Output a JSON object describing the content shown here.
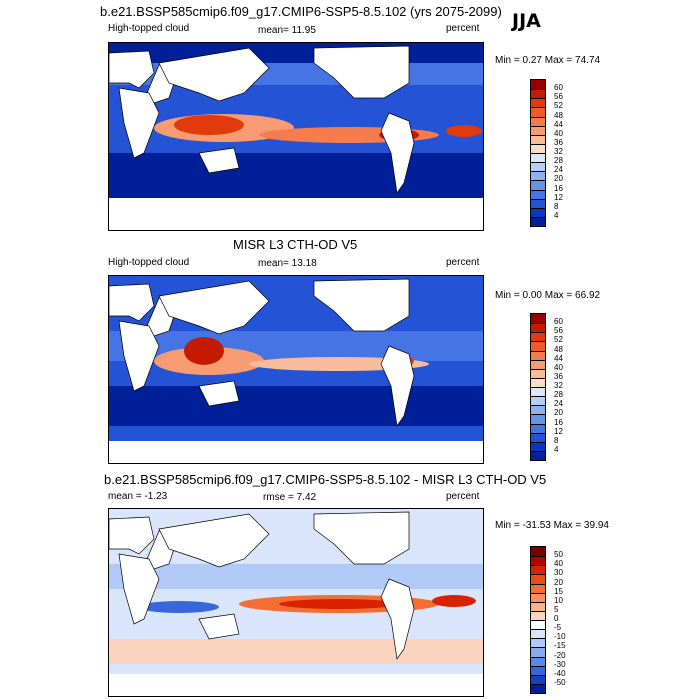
{
  "season": "JJA",
  "panels": [
    {
      "title": "b.e21.BSSP585cmip6.f09_g17.CMIP6-SSP5-8.5.102 (yrs 2075-2099)",
      "left_label": "High-topped cloud",
      "center_label": "mean=  11.95",
      "right_label": "percent",
      "minmax": "Min =   0.27 Max =  74.74",
      "colorbar_labels": [
        "60",
        "56",
        "52",
        "48",
        "44",
        "40",
        "36",
        "32",
        "28",
        "24",
        "20",
        "16",
        "12",
        "8",
        "4"
      ]
    },
    {
      "title": "MISR L3 CTH-OD V5",
      "left_label": "High-topped cloud",
      "center_label": "mean=  13.18",
      "right_label": "percent",
      "minmax": "Min =   0.00 Max =  66.92",
      "colorbar_labels": [
        "60",
        "56",
        "52",
        "48",
        "44",
        "40",
        "36",
        "32",
        "28",
        "24",
        "20",
        "16",
        "12",
        "8",
        "4"
      ]
    },
    {
      "title": "b.e21.BSSP585cmip6.f09_g17.CMIP6-SSP5-8.5.102 - MISR L3 CTH-OD V5",
      "left_label": "mean =  -1.23",
      "center_label": "rmse =   7.42",
      "right_label": "percent",
      "minmax": "Min = -31.53 Max =  39.94",
      "colorbar_labels": [
        "50",
        "40",
        "30",
        "20",
        "15",
        "10",
        "5",
        "0",
        "-5",
        "-10",
        "-15",
        "-20",
        "-30",
        "-40",
        "-50"
      ]
    }
  ],
  "colors": {
    "seq": [
      "#990000",
      "#c41a00",
      "#e03a0d",
      "#ef5a2a",
      "#f47c4d",
      "#f79b72",
      "#f9bc9a",
      "#fbdcc6",
      "#dbe7fb",
      "#b6cff8",
      "#8fb3f2",
      "#6794eb",
      "#4674e4",
      "#2553d6",
      "#0a36c0",
      "#00209a"
    ],
    "div": [
      "#7a0000",
      "#b30000",
      "#d92300",
      "#ee4a12",
      "#f46d32",
      "#f79159",
      "#f9b38b",
      "#fbd4bf",
      "#ffffff",
      "#d9e5fb",
      "#b1c9f6",
      "#88aaef",
      "#5f89e6",
      "#3866db",
      "#1540c4",
      "#00209a"
    ]
  },
  "chart_data": [
    {
      "type": "heatmap",
      "title": "b.e21.BSSP585cmip6.f09_g17.CMIP6-SSP5-8.5.102 (yrs 2075-2099)",
      "variable": "High-topped cloud",
      "units": "percent",
      "mean": 11.95,
      "min": 0.27,
      "max": 74.74,
      "colorbar_levels": [
        4,
        8,
        12,
        16,
        20,
        24,
        28,
        32,
        36,
        40,
        44,
        48,
        52,
        56,
        60
      ]
    },
    {
      "type": "heatmap",
      "title": "MISR L3 CTH-OD V5",
      "variable": "High-topped cloud",
      "units": "percent",
      "mean": 13.18,
      "min": 0.0,
      "max": 66.92,
      "colorbar_levels": [
        4,
        8,
        12,
        16,
        20,
        24,
        28,
        32,
        36,
        40,
        44,
        48,
        52,
        56,
        60
      ]
    },
    {
      "type": "heatmap",
      "title": "b.e21.BSSP585cmip6.f09_g17.CMIP6-SSP5-8.5.102 - MISR L3 CTH-OD V5",
      "units": "percent",
      "mean": -1.23,
      "rmse": 7.42,
      "min": -31.53,
      "max": 39.94,
      "colorbar_levels": [
        -50,
        -40,
        -30,
        -20,
        -15,
        -10,
        -5,
        0,
        5,
        10,
        15,
        20,
        30,
        40,
        50
      ]
    }
  ]
}
